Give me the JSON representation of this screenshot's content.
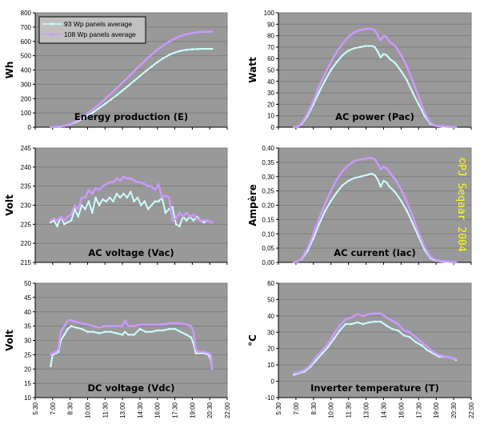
{
  "legend": {
    "series": [
      {
        "name": "93 Wp panels average",
        "color": "#ccffff"
      },
      {
        "name": "108 Wp panels average",
        "color": "#cc99ff"
      }
    ]
  },
  "copyright": "©PJ Seqaar 2004",
  "colors": {
    "plot_bg": "#999999",
    "grid": "#7f7f7f",
    "axis": "#000000"
  },
  "x_axis": {
    "ticks": [
      "5:30",
      "7:00",
      "8:30",
      "10:00",
      "11:30",
      "13:00",
      "14:30",
      "16:00",
      "17:30",
      "19:00",
      "20:30",
      "22:00"
    ],
    "range_hours": [
      5.5,
      22.0
    ]
  },
  "chart_data": [
    {
      "id": "energy",
      "type": "line",
      "title": "Energy production (E)",
      "ylabel": "Wh",
      "ylim": [
        0,
        800
      ],
      "yticks": [
        "0",
        "100",
        "200",
        "300",
        "400",
        "500",
        "600",
        "700",
        "800"
      ],
      "show_legend": true,
      "x": [
        6.83,
        7.5,
        8.0,
        8.5,
        9.0,
        9.5,
        10.0,
        10.5,
        11.0,
        11.5,
        12.0,
        12.5,
        13.0,
        13.5,
        14.0,
        14.5,
        15.0,
        15.5,
        16.0,
        16.5,
        17.0,
        17.5,
        18.0,
        18.5,
        19.0,
        19.5,
        20.0,
        20.5,
        20.7
      ],
      "series": [
        {
          "name": "93 Wp panels average",
          "values": [
            0,
            2,
            8,
            20,
            36,
            56,
            80,
            106,
            134,
            163,
            193,
            224,
            256,
            290,
            324,
            358,
            392,
            424,
            455,
            482,
            505,
            522,
            534,
            541,
            545,
            547,
            548,
            548,
            548
          ]
        },
        {
          "name": "108 Wp panels average",
          "values": [
            0,
            3,
            10,
            24,
            43,
            68,
            96,
            127,
            161,
            197,
            234,
            272,
            311,
            351,
            392,
            432,
            471,
            508,
            542,
            572,
            598,
            620,
            637,
            650,
            659,
            664,
            667,
            668,
            668
          ]
        }
      ]
    },
    {
      "id": "pac",
      "type": "line",
      "title": "AC power (Pac)",
      "ylabel": "Watt",
      "ylim": [
        0,
        100
      ],
      "yticks": [
        "0",
        "10",
        "20",
        "30",
        "40",
        "50",
        "60",
        "70",
        "80",
        "90",
        "100"
      ],
      "x": [
        6.83,
        7.25,
        7.5,
        8.0,
        8.5,
        9.0,
        9.5,
        10.0,
        10.5,
        11.0,
        11.5,
        12.0,
        12.5,
        13.0,
        13.25,
        13.5,
        13.75,
        14.0,
        14.25,
        14.5,
        14.75,
        15.0,
        15.5,
        16.0,
        16.5,
        17.0,
        17.5,
        18.0,
        18.5,
        19.0,
        19.5,
        20.0,
        20.5,
        20.7
      ],
      "series": [
        {
          "name": "93 Wp panels average",
          "values": [
            0,
            1,
            3,
            10,
            20,
            31,
            41,
            50,
            57,
            63,
            67,
            69,
            70,
            71,
            71,
            71,
            70,
            66,
            61,
            64,
            63,
            60,
            56,
            49,
            41,
            30,
            20,
            10,
            3,
            1,
            0.5,
            0,
            0,
            0
          ]
        },
        {
          "name": "108 Wp panels average",
          "values": [
            0,
            1,
            4,
            12,
            23,
            36,
            47,
            57,
            66,
            73,
            79,
            83,
            85,
            86,
            86,
            86,
            85,
            80,
            76,
            80,
            79,
            75,
            71,
            63,
            53,
            40,
            27,
            13,
            4,
            1,
            1,
            0.5,
            0,
            0
          ]
        }
      ]
    },
    {
      "id": "vac",
      "type": "line",
      "title": "AC voltage (Vac)",
      "ylabel": "Volt",
      "ylim": [
        215,
        245
      ],
      "yticks": [
        "215",
        "220",
        "225",
        "230",
        "235",
        "240",
        "245"
      ],
      "x": [
        6.83,
        7.1,
        7.4,
        7.7,
        8.0,
        8.3,
        8.6,
        8.9,
        9.2,
        9.5,
        9.8,
        10.1,
        10.4,
        10.7,
        11.0,
        11.3,
        11.6,
        11.9,
        12.2,
        12.5,
        12.8,
        13.1,
        13.4,
        13.7,
        14.0,
        14.3,
        14.6,
        14.9,
        15.2,
        15.5,
        15.8,
        16.1,
        16.4,
        16.7,
        17.0,
        17.3,
        17.6,
        17.9,
        18.2,
        18.5,
        18.8,
        19.1,
        19.4,
        19.7,
        20.0,
        20.3,
        20.6,
        20.7
      ],
      "series": [
        {
          "name": "93 Wp panels average",
          "values": [
            225.5,
            226,
            224.5,
            227,
            225,
            225.5,
            226,
            229,
            227,
            230,
            229,
            231,
            228,
            232,
            230,
            231.5,
            231,
            232,
            231,
            233,
            232,
            233,
            232,
            233.5,
            231,
            232,
            230,
            231,
            229,
            230,
            231,
            231,
            232,
            228,
            229,
            229.5,
            225,
            224.5,
            227,
            226,
            227,
            226,
            227,
            226,
            225.5,
            226,
            225.5,
            225.5
          ]
        },
        {
          "name": "108 Wp panels average",
          "values": [
            226,
            226.5,
            226,
            227,
            226,
            227,
            227.5,
            230,
            229,
            232,
            232,
            234,
            233,
            234.5,
            234,
            235,
            235.5,
            236,
            236,
            237,
            236.5,
            237.5,
            237,
            237,
            236.5,
            236,
            236,
            235.5,
            235,
            235,
            234,
            235.5,
            232,
            232.5,
            232,
            226,
            226.5,
            228,
            227,
            228,
            227,
            227.5,
            226.5,
            226,
            226,
            226,
            225.5,
            225.5
          ]
        }
      ]
    },
    {
      "id": "iac",
      "type": "line",
      "title": "AC current (Iac)",
      "ylabel": "Ampère",
      "ylim": [
        0,
        0.4
      ],
      "yticks": [
        "0,00",
        "0,05",
        "0,10",
        "0,15",
        "0,20",
        "0,25",
        "0,30",
        "0,35",
        "0,40"
      ],
      "x": [
        6.83,
        7.25,
        7.5,
        8.0,
        8.5,
        9.0,
        9.5,
        10.0,
        10.5,
        11.0,
        11.5,
        12.0,
        12.5,
        13.0,
        13.25,
        13.5,
        13.75,
        14.0,
        14.25,
        14.5,
        14.75,
        15.0,
        15.5,
        16.0,
        16.5,
        17.0,
        17.5,
        18.0,
        18.5,
        19.0,
        19.5,
        20.0,
        20.5,
        20.7
      ],
      "series": [
        {
          "name": "93 Wp panels average",
          "values": [
            0,
            0.005,
            0.012,
            0.04,
            0.085,
            0.135,
            0.18,
            0.215,
            0.245,
            0.27,
            0.285,
            0.295,
            0.3,
            0.305,
            0.308,
            0.31,
            0.305,
            0.29,
            0.265,
            0.285,
            0.28,
            0.265,
            0.245,
            0.215,
            0.18,
            0.135,
            0.09,
            0.045,
            0.015,
            0.005,
            0.003,
            0,
            0,
            0
          ]
        },
        {
          "name": "108 Wp panels average",
          "values": [
            0,
            0.005,
            0.015,
            0.05,
            0.1,
            0.155,
            0.205,
            0.25,
            0.29,
            0.32,
            0.34,
            0.355,
            0.36,
            0.362,
            0.365,
            0.365,
            0.36,
            0.345,
            0.325,
            0.335,
            0.33,
            0.315,
            0.29,
            0.255,
            0.21,
            0.16,
            0.105,
            0.055,
            0.02,
            0.008,
            0.005,
            0.003,
            0,
            0
          ]
        }
      ]
    },
    {
      "id": "vdc",
      "type": "line",
      "title": "DC voltage (Vdc)",
      "ylabel": "Volt",
      "ylim": [
        10,
        50
      ],
      "yticks": [
        "10",
        "15",
        "20",
        "25",
        "30",
        "35",
        "40",
        "45",
        "50"
      ],
      "x": [
        6.83,
        7.0,
        7.3,
        7.5,
        7.7,
        8.0,
        8.3,
        8.6,
        9.0,
        9.5,
        10.0,
        10.5,
        11.0,
        11.5,
        12.0,
        12.5,
        13.0,
        13.2,
        13.5,
        14.0,
        14.5,
        15.0,
        15.5,
        16.0,
        16.5,
        17.0,
        17.5,
        18.0,
        18.5,
        18.9,
        19.1,
        19.3,
        19.5,
        20.0,
        20.4,
        20.6,
        20.7
      ],
      "series": [
        {
          "name": "93 Wp panels average",
          "values": [
            21,
            25,
            25.5,
            26,
            30,
            32,
            34,
            35,
            34.5,
            34,
            33,
            33,
            32.5,
            33,
            33,
            32.5,
            32,
            33,
            32,
            32,
            34,
            33,
            33,
            33.5,
            33.5,
            34,
            34,
            33,
            32,
            31,
            29,
            25.5,
            25.5,
            25.5,
            25,
            23,
            20
          ]
        },
        {
          "name": "108 Wp panels average",
          "values": [
            25,
            25.5,
            26,
            27,
            33,
            35,
            37,
            37,
            36.5,
            36,
            35.5,
            35,
            34.5,
            35,
            35,
            35,
            35,
            37,
            35,
            35,
            35.5,
            35.5,
            35.5,
            35.5,
            35.5,
            36,
            36,
            36,
            35.5,
            35,
            33,
            27,
            26,
            26,
            25.5,
            25,
            20
          ]
        }
      ]
    },
    {
      "id": "temp",
      "type": "line",
      "title": "Inverter temperature (T)",
      "ylabel": "°C",
      "ylim": [
        -10,
        60
      ],
      "yticks": [
        "-10",
        "0",
        "10",
        "20",
        "30",
        "40",
        "50",
        "60"
      ],
      "x": [
        6.83,
        7.25,
        7.75,
        8.25,
        8.75,
        9.25,
        9.75,
        10.25,
        10.75,
        11.25,
        11.75,
        12.25,
        12.75,
        13.25,
        13.75,
        14.25,
        14.75,
        15.25,
        15.75,
        16.25,
        16.75,
        17.25,
        17.75,
        18.25,
        18.75,
        19.25,
        19.75,
        20.25,
        20.7
      ],
      "series": [
        {
          "name": "93 Wp panels average",
          "values": [
            4,
            5,
            6,
            9,
            13,
            17,
            21,
            26,
            31,
            35,
            35,
            36,
            35,
            36,
            36.5,
            36.5,
            34,
            32,
            31,
            28,
            27,
            24,
            22,
            19,
            17,
            15,
            15,
            14.5,
            13
          ]
        },
        {
          "name": "108 Wp panels average",
          "values": [
            5,
            5.5,
            7,
            10,
            15,
            19,
            23,
            29,
            34,
            38,
            39,
            41,
            40,
            41,
            41.5,
            41.5,
            39,
            37,
            35,
            31,
            30,
            27,
            24,
            21,
            18,
            16,
            15,
            14.5,
            13.5
          ]
        }
      ]
    }
  ]
}
